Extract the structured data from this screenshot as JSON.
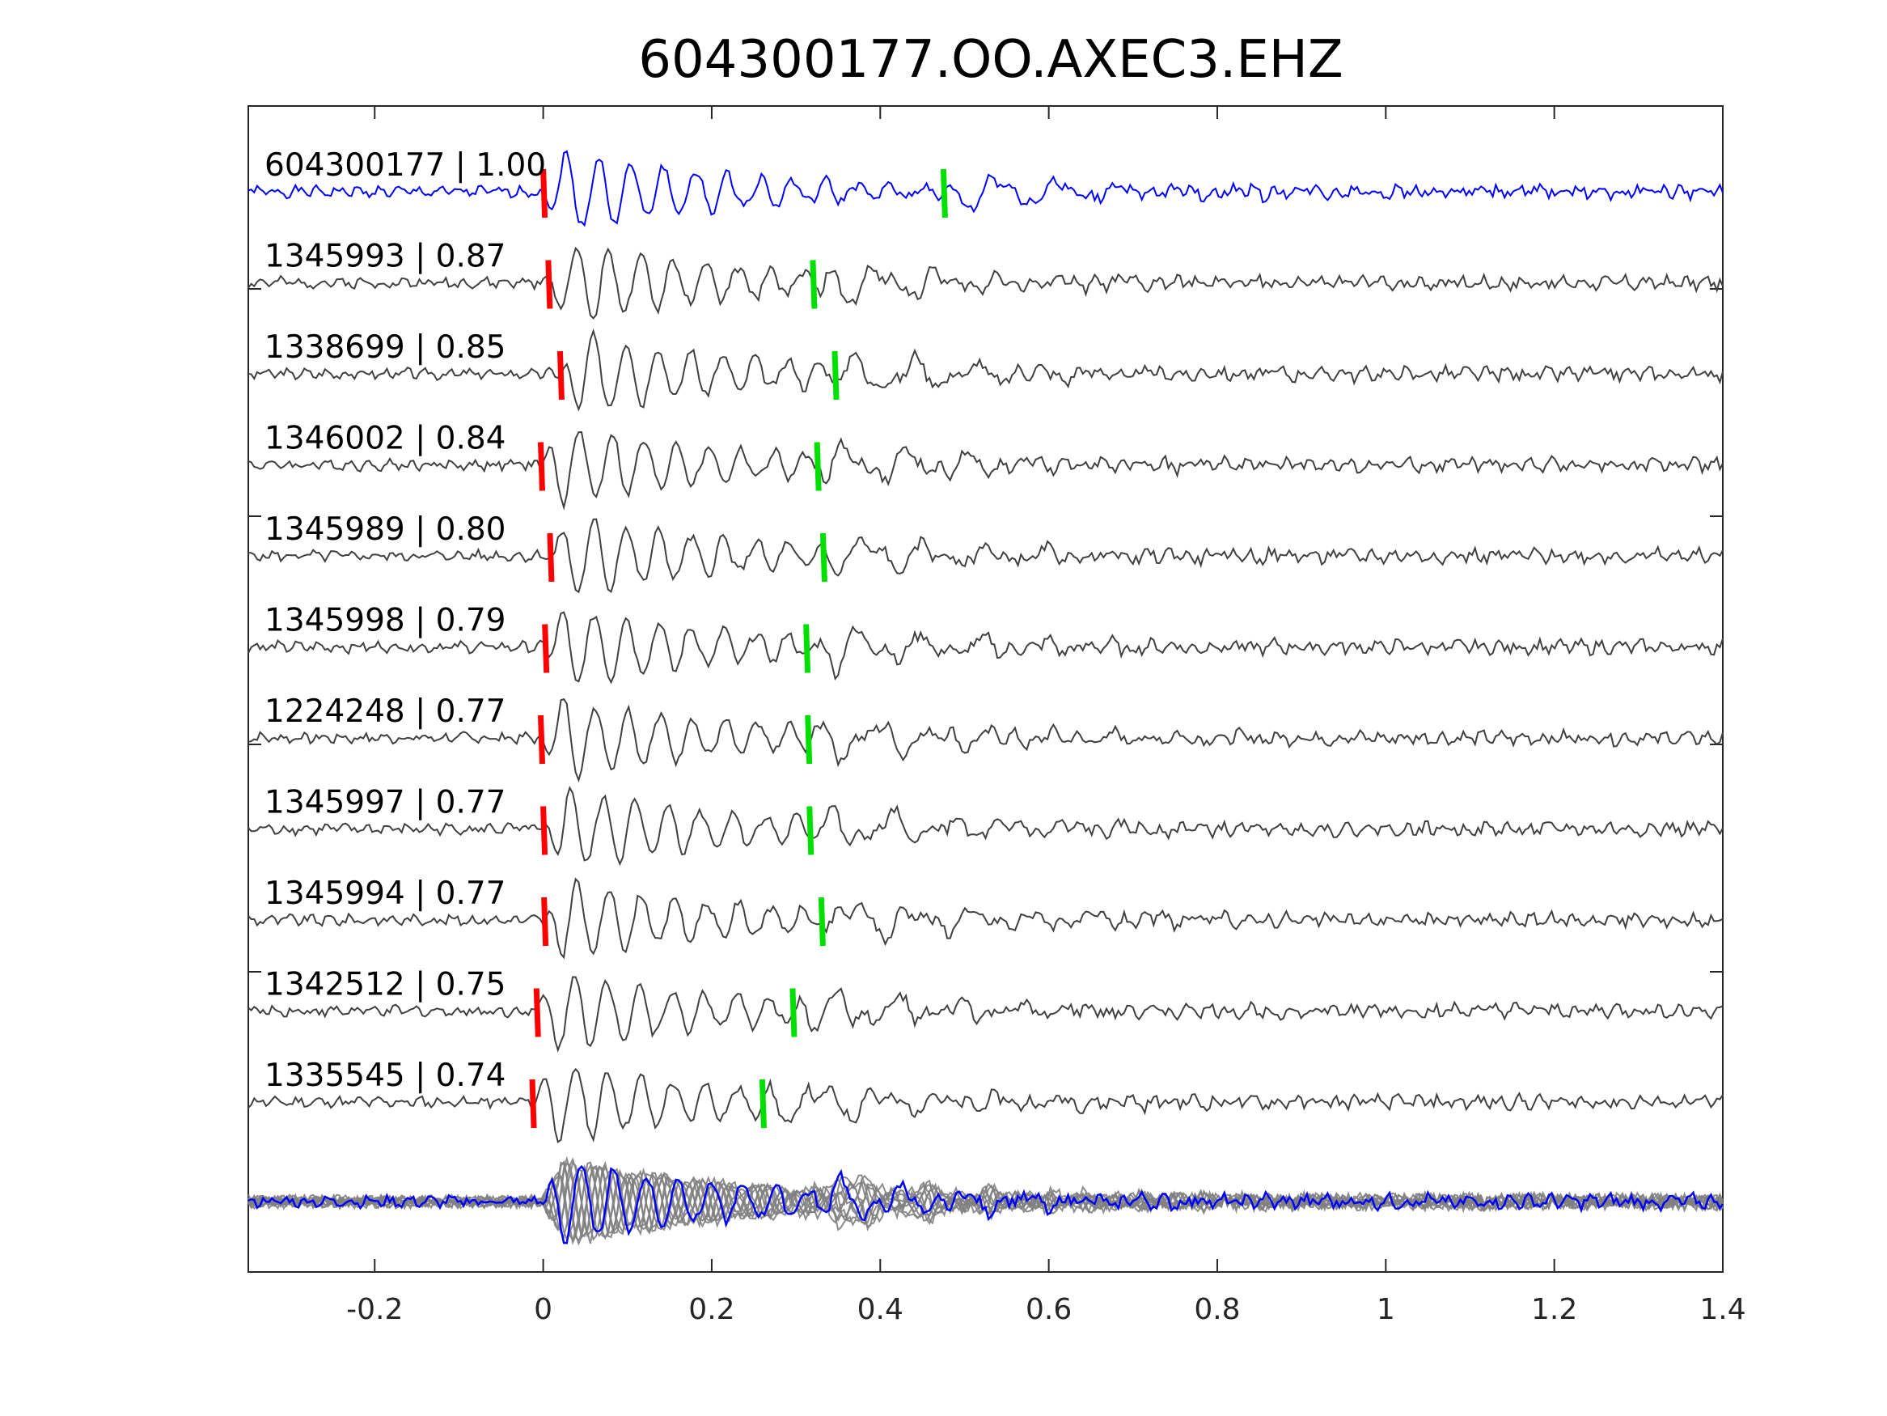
{
  "chart_data": {
    "type": "line",
    "title": "604300177.OO.AXEC3.EHZ",
    "xlabel": "",
    "ylabel": "",
    "xlim": [
      -0.35,
      1.4
    ],
    "x_ticks": [
      -0.2,
      0,
      0.2,
      0.4,
      0.6,
      0.8,
      1,
      1.2,
      1.4
    ],
    "x_tick_labels": [
      "-0.2",
      "0",
      "0.2",
      "0.4",
      "0.6",
      "0.8",
      "1",
      "1.2",
      "1.4"
    ],
    "grid": false,
    "colors": {
      "master": "#0000ff",
      "trace": "#404040",
      "stack": "#808080",
      "p_pick": "#ff0000",
      "s_pick": "#00e000"
    },
    "traces": [
      {
        "label": "604300177 | 1.00",
        "id": "604300177",
        "cc": 1.0,
        "p_pick": 0.0,
        "s_pick": 0.475,
        "seed": 1
      },
      {
        "label": "1345993 | 0.87",
        "id": "1345993",
        "cc": 0.87,
        "p_pick": 0.006,
        "s_pick": 0.32,
        "seed": 2
      },
      {
        "label": "1338699 | 0.85",
        "id": "1338699",
        "cc": 0.85,
        "p_pick": 0.02,
        "s_pick": 0.346,
        "seed": 3
      },
      {
        "label": "1346002 | 0.84",
        "id": "1346002",
        "cc": 0.84,
        "p_pick": -0.003,
        "s_pick": 0.325,
        "seed": 4
      },
      {
        "label": "1345989 | 0.80",
        "id": "1345989",
        "cc": 0.8,
        "p_pick": 0.008,
        "s_pick": 0.332,
        "seed": 5
      },
      {
        "label": "1345998 | 0.79",
        "id": "1345998",
        "cc": 0.79,
        "p_pick": 0.002,
        "s_pick": 0.312,
        "seed": 6
      },
      {
        "label": "1224248 | 0.77",
        "id": "1224248",
        "cc": 0.77,
        "p_pick": -0.003,
        "s_pick": 0.314,
        "seed": 7
      },
      {
        "label": "1345997 | 0.77",
        "id": "1345997",
        "cc": 0.77,
        "p_pick": 0.0,
        "s_pick": 0.316,
        "seed": 8
      },
      {
        "label": "1345994 | 0.77",
        "id": "1345994",
        "cc": 0.77,
        "p_pick": 0.001,
        "s_pick": 0.33,
        "seed": 9
      },
      {
        "label": "1342512 | 0.75",
        "id": "1342512",
        "cc": 0.75,
        "p_pick": -0.008,
        "s_pick": 0.296,
        "seed": 10
      },
      {
        "label": "1335545 | 0.74",
        "id": "1335545",
        "cc": 0.74,
        "p_pick": -0.013,
        "s_pick": 0.26,
        "seed": 11
      }
    ],
    "stack": {
      "overlay_count": 10
    }
  }
}
